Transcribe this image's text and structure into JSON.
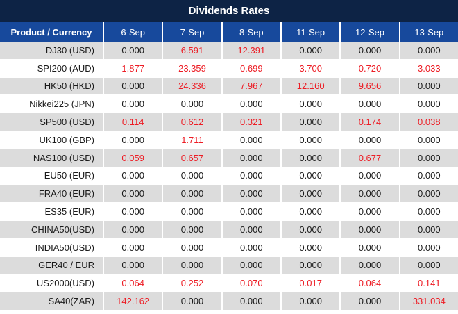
{
  "title_bar": {
    "title": "Dividends Rates"
  },
  "colors": {
    "title_bar_bg": "#0d2345",
    "header_bg": "#17499c",
    "row_alt_bg": "#dcdcdc",
    "row_bg": "#ffffff",
    "value_red": "#ed1c24",
    "text_dark": "#1a1a1a",
    "header_text": "#ffffff"
  },
  "chart_data": {
    "type": "table",
    "title": "Dividends Rates",
    "columns": [
      "Product / Currency",
      "6-Sep",
      "7-Sep",
      "8-Sep",
      "11-Sep",
      "12-Sep",
      "13-Sep"
    ],
    "rows": [
      {
        "product": "DJ30 (USD)",
        "values": [
          "0.000",
          "6.591",
          "12.391",
          "0.000",
          "0.000",
          "0.000"
        ]
      },
      {
        "product": "SPI200 (AUD)",
        "values": [
          "1.877",
          "23.359",
          "0.699",
          "3.700",
          "0.720",
          "3.033"
        ]
      },
      {
        "product": "HK50 (HKD)",
        "values": [
          "0.000",
          "24.336",
          "7.967",
          "12.160",
          "9.656",
          "0.000"
        ]
      },
      {
        "product": "Nikkei225 (JPN)",
        "values": [
          "0.000",
          "0.000",
          "0.000",
          "0.000",
          "0.000",
          "0.000"
        ]
      },
      {
        "product": "SP500 (USD)",
        "values": [
          "0.114",
          "0.612",
          "0.321",
          "0.000",
          "0.174",
          "0.038"
        ]
      },
      {
        "product": "UK100 (GBP)",
        "values": [
          "0.000",
          "1.711",
          "0.000",
          "0.000",
          "0.000",
          "0.000"
        ]
      },
      {
        "product": "NAS100 (USD)",
        "values": [
          "0.059",
          "0.657",
          "0.000",
          "0.000",
          "0.677",
          "0.000"
        ]
      },
      {
        "product": "EU50 (EUR)",
        "values": [
          "0.000",
          "0.000",
          "0.000",
          "0.000",
          "0.000",
          "0.000"
        ]
      },
      {
        "product": "FRA40 (EUR)",
        "values": [
          "0.000",
          "0.000",
          "0.000",
          "0.000",
          "0.000",
          "0.000"
        ]
      },
      {
        "product": "ES35 (EUR)",
        "values": [
          "0.000",
          "0.000",
          "0.000",
          "0.000",
          "0.000",
          "0.000"
        ]
      },
      {
        "product": "CHINA50(USD)",
        "values": [
          "0.000",
          "0.000",
          "0.000",
          "0.000",
          "0.000",
          "0.000"
        ]
      },
      {
        "product": "INDIA50(USD)",
        "values": [
          "0.000",
          "0.000",
          "0.000",
          "0.000",
          "0.000",
          "0.000"
        ]
      },
      {
        "product": "GER40 / EUR",
        "values": [
          "0.000",
          "0.000",
          "0.000",
          "0.000",
          "0.000",
          "0.000"
        ]
      },
      {
        "product": "US2000(USD)",
        "values": [
          "0.064",
          "0.252",
          "0.070",
          "0.017",
          "0.064",
          "0.141"
        ]
      },
      {
        "product": "SA40(ZAR)",
        "values": [
          "142.162",
          "0.000",
          "0.000",
          "0.000",
          "0.000",
          "331.034"
        ]
      }
    ],
    "value_color_rule": "non-zero values rendered in red, zero values in near-black",
    "layout_hints": {
      "first_column_align": "right",
      "value_align": "center",
      "alternating_rows": "odd rows gray, even rows white"
    }
  }
}
